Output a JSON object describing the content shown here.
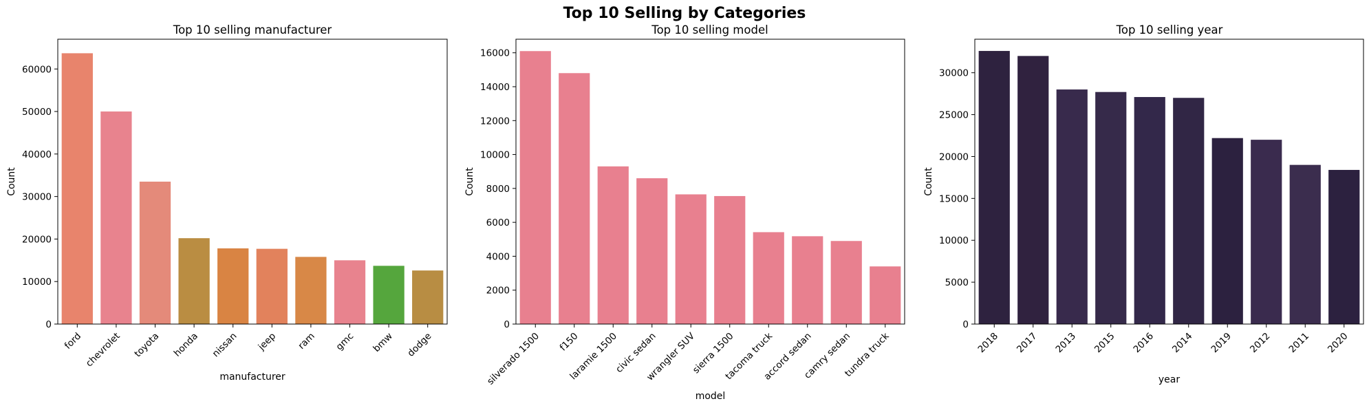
{
  "suptitle": "Top 10 Selling by Categories",
  "chart_data": [
    {
      "type": "bar",
      "title": "Top 10 selling manufacturer",
      "xlabel": "manufacturer",
      "ylabel": "Count",
      "ylim": [
        0,
        67000
      ],
      "yticks": [
        0,
        10000,
        20000,
        30000,
        40000,
        50000,
        60000
      ],
      "categories": [
        "ford",
        "chevrolet",
        "toyota",
        "honda",
        "nissan",
        "jeep",
        "ram",
        "gmc",
        "bmw",
        "dodge"
      ],
      "values": [
        63700,
        50000,
        33500,
        20200,
        17800,
        17700,
        15800,
        15000,
        13700,
        12600
      ],
      "colors": [
        "#e8846c",
        "#e8838e",
        "#e48a7a",
        "#ba8d42",
        "#d98443",
        "#e2825c",
        "#d88847",
        "#e8838e",
        "#55a63d",
        "#b88d43"
      ]
    },
    {
      "type": "bar",
      "title": "Top 10 selling model",
      "xlabel": "model",
      "ylabel": "Count",
      "ylim": [
        0,
        16800
      ],
      "yticks": [
        0,
        2000,
        4000,
        6000,
        8000,
        10000,
        12000,
        14000,
        16000
      ],
      "categories": [
        "silverado 1500",
        "f150",
        "laramie 1500",
        "civic sedan",
        "wrangler SUV",
        "sierra 1500",
        "tacoma truck",
        "accord sedan",
        "camry sedan",
        "tundra truck"
      ],
      "values": [
        16100,
        14800,
        9300,
        8600,
        7650,
        7550,
        5420,
        5180,
        4900,
        3400
      ],
      "colors": [
        "#e8808f",
        "#e8808f",
        "#e8808f",
        "#e8808f",
        "#e8808f",
        "#e8808f",
        "#e8808f",
        "#e8808f",
        "#e8808f",
        "#e8808f"
      ]
    },
    {
      "type": "bar",
      "title": "Top 10 selling year",
      "xlabel": "year",
      "ylabel": "Count",
      "ylim": [
        0,
        34000
      ],
      "yticks": [
        0,
        5000,
        10000,
        15000,
        20000,
        25000,
        30000
      ],
      "categories": [
        "2018",
        "2017",
        "2013",
        "2015",
        "2016",
        "2014",
        "2019",
        "2012",
        "2011",
        "2020"
      ],
      "values": [
        32600,
        32000,
        28000,
        27700,
        27100,
        27000,
        22200,
        22000,
        19000,
        18400
      ],
      "colors": [
        "#2e223f",
        "#30223f",
        "#382a4c",
        "#362a4a",
        "#33284a",
        "#312645",
        "#2c213f",
        "#3a2b4e",
        "#3b2d4e",
        "#2c213f"
      ]
    }
  ]
}
